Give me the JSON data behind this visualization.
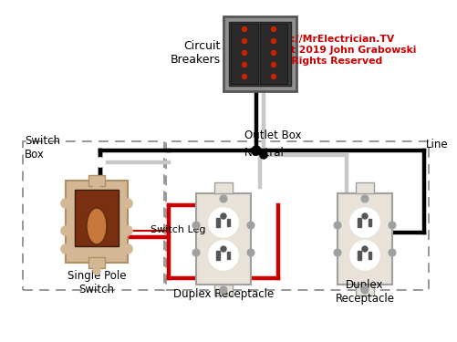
{
  "bg_color": "#ffffff",
  "copyright_text": "https://MrElectrician.TV\nCopyright 2019 John Grabowski\nAll Rights Reserved",
  "copyright_color": "#cc0000",
  "labels": {
    "circuit_breakers": "Circuit\nBreakers",
    "outlet_box": "Outlet Box",
    "switch_box": "Switch\nBox",
    "line": "Line",
    "neutral": "Neutral",
    "switch_leg": "Switch Leg",
    "single_pole": "Single Pole\nSwitch",
    "duplex1": "Duplex Receptacle",
    "duplex2": "Duplex\nReceptacle"
  },
  "label_color": "#000000",
  "wire_black": "#000000",
  "wire_white": "#c8c8c8",
  "wire_red": "#cc0000",
  "panel_gray": "#909090",
  "panel_dark": "#555555",
  "panel_inner": "#3a3a3a",
  "switch_body_color": "#d4b896",
  "switch_dark": "#7a3010",
  "switch_mid": "#c8783c",
  "outlet_body": "#e8e2d8",
  "outlet_gray": "#a0a0a0",
  "outlet_dark": "#555555",
  "dashed_color": "#909090"
}
